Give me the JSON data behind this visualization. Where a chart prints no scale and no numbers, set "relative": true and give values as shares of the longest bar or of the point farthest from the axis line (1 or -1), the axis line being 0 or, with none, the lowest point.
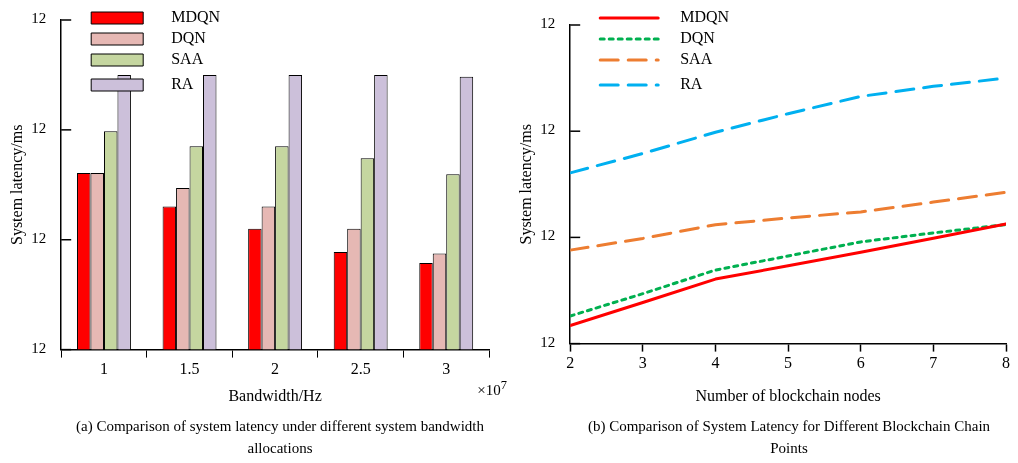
{
  "chart_data": [
    {
      "type": "bar",
      "xlabel": "Bandwidth/Hz",
      "ylabel": "System latency/ms",
      "categories": [
        "1",
        "1.5",
        "2",
        "2.5",
        "3"
      ],
      "relative": true,
      "legend": "top left",
      "grid": false,
      "series": [
        {
          "name": "MDQN",
          "color": "#ff0000",
          "values": [
            0.643,
            0.521,
            0.44,
            0.355,
            0.315
          ]
        },
        {
          "name": "DQN",
          "color": "#e6b8b4",
          "values": [
            0.643,
            0.588,
            0.521,
            0.44,
            0.35
          ]
        },
        {
          "name": "SAA",
          "color": "#c5d6a0",
          "values": [
            0.795,
            0.74,
            0.74,
            0.697,
            0.638
          ]
        },
        {
          "name": "RA",
          "color": "#ccc0da",
          "values": [
            1,
            1,
            1,
            1,
            0.993
          ]
        }
      ],
      "annotations": [
        "12",
        "12",
        "12",
        "12",
        "×10$^{7}$",
        "(a) Comparison of system latency under different system bandwidth allocations"
      ]
    },
    {
      "type": "line",
      "xlabel": "Number of blockchain nodes",
      "ylabel": "System latency/ms",
      "x": [
        2,
        3,
        4,
        5,
        6,
        7,
        8
      ],
      "xlim": [
        2,
        8
      ],
      "xticks": [
        2,
        3,
        4,
        5,
        6,
        7,
        8
      ],
      "relative": true,
      "legend": "top left",
      "grid": false,
      "marker": "none",
      "series": [
        {
          "name": "MDQN",
          "color": "#ff0000",
          "line_style": "solid",
          "values": [
            0.068,
            0.155,
            0.243,
            0.293,
            0.344,
            0.397,
            0.451
          ]
        },
        {
          "name": "DQN",
          "color": "#00b050",
          "line_style": "dotted",
          "values": [
            0.104,
            0.188,
            0.277,
            0.33,
            0.383,
            0.417,
            0.448
          ]
        },
        {
          "name": "SAA",
          "color": "#ed7d31",
          "line_style": "dashed",
          "values": [
            0.352,
            0.396,
            0.448,
            0.473,
            0.496,
            0.533,
            0.57
          ]
        },
        {
          "name": "RA",
          "color": "#00b0f0",
          "line_style": "dashed",
          "values": [
            0.643,
            0.716,
            0.796,
            0.866,
            0.931,
            0.969,
            1
          ]
        }
      ],
      "annotations": [
        "12",
        "12",
        "12",
        "12",
        "(b) Comparison of System Latency for Different Blockchain Chain Points"
      ]
    }
  ]
}
